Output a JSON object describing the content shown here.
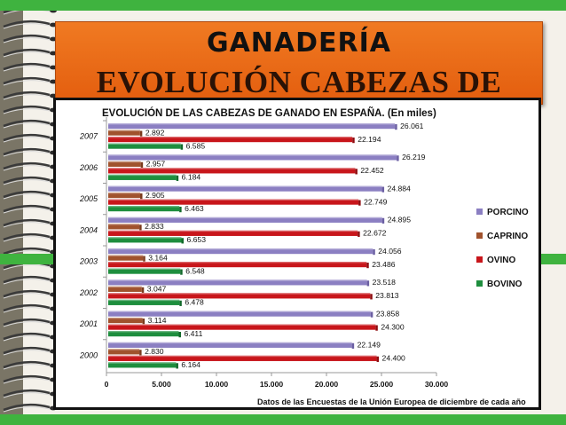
{
  "slide": {
    "heading": "GANADERÍA",
    "subheading": "EVOLUCIÓN CABEZAS DE GANADO"
  },
  "colors": {
    "porcino": "#8b7fc2",
    "caprino": "#a0522d",
    "ovino": "#c8161b",
    "bovino": "#1e8e3e",
    "title_bg": "#ee6f1a",
    "accent_green": "#3fb33f"
  },
  "chart_data": {
    "type": "bar",
    "orientation": "horizontal",
    "title": "EVOLUCIÓN DE LAS CABEZAS DE GANADO EN ESPAÑA. (En miles)",
    "source_note": "Datos de las Encuestas de la Unión Europea de diciembre de cada año",
    "categories": [
      "2007",
      "2006",
      "2005",
      "2004",
      "2003",
      "2002",
      "2001",
      "2000"
    ],
    "xlim": [
      0,
      30000
    ],
    "x_ticks": [
      "0",
      "5.000",
      "10.000",
      "15.000",
      "20.000",
      "25.000",
      "30.000"
    ],
    "x_tick_values": [
      0,
      5000,
      10000,
      15000,
      20000,
      25000,
      30000
    ],
    "grid": false,
    "legend_position": "right",
    "series": [
      {
        "name": "PORCINO",
        "values": [
          26061,
          26219,
          24884,
          24895,
          24056,
          23518,
          23858,
          22149
        ],
        "labels": [
          "26.061",
          "26.219",
          "24.884",
          "24.895",
          "24.056",
          "23.518",
          "23.858",
          "22.149"
        ]
      },
      {
        "name": "CAPRINO",
        "values": [
          2892,
          2957,
          2905,
          2833,
          3164,
          3047,
          3114,
          2830
        ],
        "labels": [
          "2.892",
          "2.957",
          "2.905",
          "2.833",
          "3.164",
          "3.047",
          "3.114",
          "2.830"
        ]
      },
      {
        "name": "OVINO",
        "values": [
          22194,
          22452,
          22749,
          22672,
          23486,
          23813,
          24300,
          24400
        ],
        "labels": [
          "22.194",
          "22.452",
          "22.749",
          "22.672",
          "23.486",
          "23.813",
          "24.300",
          "24.400"
        ]
      },
      {
        "name": "BOVINO",
        "values": [
          6585,
          6184,
          6463,
          6653,
          6548,
          6478,
          6411,
          6164
        ],
        "labels": [
          "6.585",
          "6.184",
          "6.463",
          "6.653",
          "6.548",
          "6.478",
          "6.411",
          "6.164"
        ]
      }
    ]
  }
}
